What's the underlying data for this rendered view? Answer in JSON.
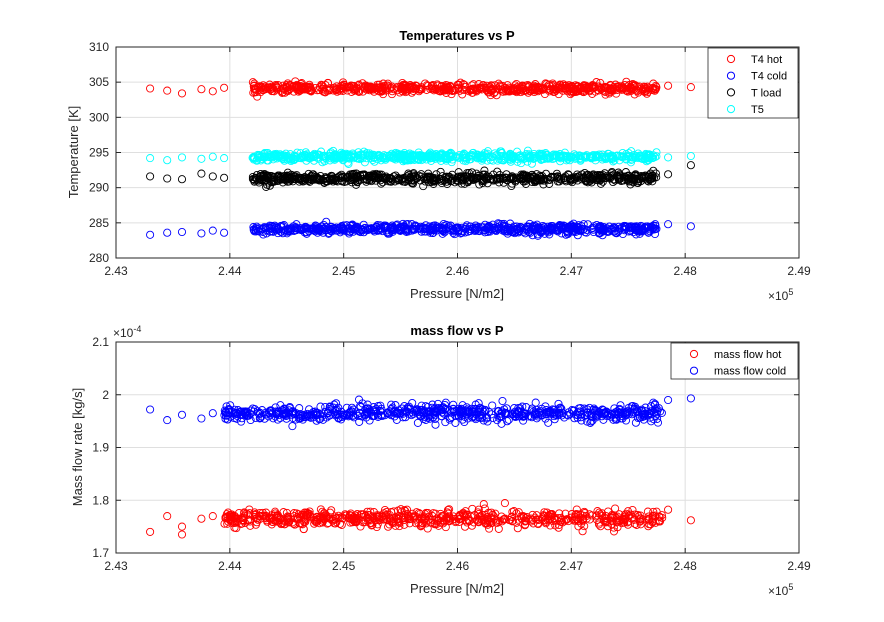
{
  "chart_data": [
    {
      "type": "scatter",
      "title": "Temperatures vs P",
      "xlabel": "Pressure [N/m2]",
      "ylabel": "Temperature [K]",
      "x_exponent_label": "×10",
      "x_exponent_power": "5",
      "xlim": [
        2.43,
        2.49
      ],
      "ylim": [
        280,
        310
      ],
      "xticks": [
        "2.43",
        "2.44",
        "2.45",
        "2.46",
        "2.47",
        "2.48",
        "2.49"
      ],
      "yticks": [
        "280",
        "285",
        "290",
        "295",
        "300",
        "305",
        "310"
      ],
      "grid": true,
      "legend_position": "top-right",
      "x_dense_range": [
        2.442,
        2.4775
      ],
      "series": [
        {
          "name": "T4 hot",
          "color": "#ff0000",
          "center": 304.1,
          "spread": 0.55,
          "sparse_points": [
            [
              2.433,
              304.1
            ],
            [
              2.4345,
              303.8
            ],
            [
              2.4358,
              303.4
            ],
            [
              2.4375,
              304.0
            ],
            [
              2.4385,
              303.7
            ],
            [
              2.4395,
              304.2
            ],
            [
              2.4772,
              304.8
            ],
            [
              2.4785,
              304.5
            ],
            [
              2.4805,
              304.3
            ]
          ]
        },
        {
          "name": "T4 cold",
          "color": "#0000ff",
          "center": 284.1,
          "spread": 0.55,
          "sparse_points": [
            [
              2.433,
              283.3
            ],
            [
              2.4345,
              283.6
            ],
            [
              2.4358,
              283.7
            ],
            [
              2.4375,
              283.5
            ],
            [
              2.4385,
              283.9
            ],
            [
              2.4395,
              283.6
            ],
            [
              2.4772,
              284.6
            ],
            [
              2.4785,
              284.8
            ],
            [
              2.4805,
              284.5
            ]
          ]
        },
        {
          "name": "T load",
          "color": "#000000",
          "center": 291.3,
          "spread": 0.6,
          "sparse_points": [
            [
              2.433,
              291.6
            ],
            [
              2.4345,
              291.3
            ],
            [
              2.4358,
              291.2
            ],
            [
              2.4375,
              292.0
            ],
            [
              2.4385,
              291.6
            ],
            [
              2.4395,
              291.4
            ],
            [
              2.4772,
              292.4
            ],
            [
              2.4785,
              291.9
            ],
            [
              2.4805,
              293.2
            ]
          ]
        },
        {
          "name": "T5",
          "color": "#00ffff",
          "center": 294.4,
          "spread": 0.5,
          "sparse_points": [
            [
              2.433,
              294.2
            ],
            [
              2.4345,
              293.9
            ],
            [
              2.4358,
              294.3
            ],
            [
              2.4375,
              294.1
            ],
            [
              2.4385,
              294.4
            ],
            [
              2.4395,
              294.2
            ],
            [
              2.4772,
              294.6
            ],
            [
              2.4785,
              294.3
            ],
            [
              2.4805,
              294.5
            ]
          ]
        }
      ]
    },
    {
      "type": "scatter",
      "title": "mass flow vs P",
      "xlabel": "Pressure [N/m2]",
      "ylabel": "Mass flow rate [kg/s]",
      "x_exponent_label": "×10",
      "x_exponent_power": "5",
      "y_exponent_label": "×10",
      "y_exponent_power": "-4",
      "xlim": [
        2.43,
        2.49
      ],
      "ylim": [
        1.7,
        2.1
      ],
      "xticks": [
        "2.43",
        "2.44",
        "2.45",
        "2.46",
        "2.47",
        "2.48",
        "2.49"
      ],
      "yticks": [
        "1.7",
        "1.8",
        "1.9",
        "2",
        "2.1"
      ],
      "grid": true,
      "legend_position": "top-right",
      "x_dense_range": [
        2.4395,
        2.478
      ],
      "series": [
        {
          "name": "mass flow hot",
          "color": "#ff0000",
          "center": 1.765,
          "spread": 0.013,
          "sparse_points": [
            [
              2.433,
              1.74
            ],
            [
              2.4345,
              1.77
            ],
            [
              2.4358,
              1.75
            ],
            [
              2.4358,
              1.735
            ],
            [
              2.4375,
              1.765
            ],
            [
              2.4385,
              1.77
            ],
            [
              2.4772,
              1.778
            ],
            [
              2.4785,
              1.782
            ],
            [
              2.4805,
              1.762
            ]
          ]
        },
        {
          "name": "mass flow cold",
          "color": "#0000ff",
          "center": 1.965,
          "spread": 0.013,
          "sparse_points": [
            [
              2.433,
              1.972
            ],
            [
              2.4345,
              1.952
            ],
            [
              2.4358,
              1.962
            ],
            [
              2.4375,
              1.955
            ],
            [
              2.4385,
              1.965
            ],
            [
              2.4772,
              1.985
            ],
            [
              2.4785,
              1.99
            ],
            [
              2.4805,
              1.993
            ]
          ]
        }
      ]
    }
  ]
}
